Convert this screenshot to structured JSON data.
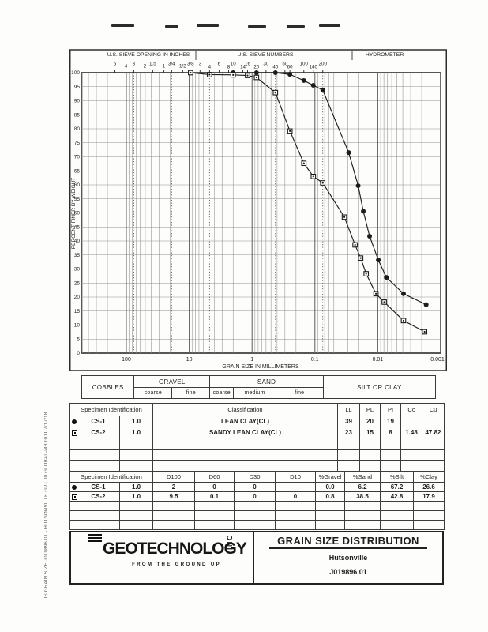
{
  "page": {
    "sidebar_note": "US GRAIN SIZE  J019896.01 - HUTSONVILLE.GPJ  00 GLOBAL-MB.GDT  7/17/18"
  },
  "colors": {
    "ink": "#1c1c1c",
    "grid_minor": "#909090",
    "grid_major": "#5c5c5c",
    "frame": "#2e2e2e"
  },
  "chart": {
    "header": {
      "inches_label": "U.S. SIEVE OPENING IN INCHES",
      "numbers_label": "U.S. SIEVE NUMBERS",
      "hydrometer_label": "HYDROMETER"
    },
    "ylabel": "PERCENT FINER BY WEIGHT",
    "xlabel": "GRAIN SIZE IN MILLIMETERS"
  },
  "chart_data": {
    "type": "line",
    "x_scale": "log-reversed",
    "x_range_mm": [
      520,
      0.001
    ],
    "ylim": [
      0,
      100
    ],
    "y_tick_step": 5,
    "grid": true,
    "x_decade_ticks": [
      {
        "label": "100",
        "mm": 100
      },
      {
        "label": "10",
        "mm": 10
      },
      {
        "label": "1",
        "mm": 1
      },
      {
        "label": "0.1",
        "mm": 0.1
      },
      {
        "label": "0.01",
        "mm": 0.01
      },
      {
        "label": "0.001",
        "mm": 0.001
      }
    ],
    "sieve_ticks_inches": [
      {
        "label": "6",
        "mm": 152.4
      },
      {
        "label": "4",
        "mm": 101.6
      },
      {
        "label": "3",
        "mm": 76.2
      },
      {
        "label": "2",
        "mm": 50.8
      },
      {
        "label": "1.5",
        "mm": 38.1
      },
      {
        "label": "1",
        "mm": 25.4
      },
      {
        "label": "3/4",
        "mm": 19.05
      },
      {
        "label": "1/2",
        "mm": 12.7
      },
      {
        "label": "3/8",
        "mm": 9.525
      }
    ],
    "sieve_ticks_numbers": [
      {
        "label": "3",
        "mm": 6.73
      },
      {
        "label": "4",
        "mm": 4.75
      },
      {
        "label": "6",
        "mm": 3.35
      },
      {
        "label": "8",
        "mm": 2.36
      },
      {
        "label": "10",
        "mm": 2.0
      },
      {
        "label": "14",
        "mm": 1.4
      },
      {
        "label": "16",
        "mm": 1.18
      },
      {
        "label": "20",
        "mm": 0.85
      },
      {
        "label": "30",
        "mm": 0.6
      },
      {
        "label": "40",
        "mm": 0.425
      },
      {
        "label": "50",
        "mm": 0.3
      },
      {
        "label": "60",
        "mm": 0.25
      },
      {
        "label": "100",
        "mm": 0.15
      },
      {
        "label": "140",
        "mm": 0.106
      },
      {
        "label": "200",
        "mm": 0.075
      }
    ],
    "boundary_lines_mm": [
      76.2,
      19.05,
      4.75,
      0.425,
      0.075
    ],
    "series": [
      {
        "name": "CS-1",
        "marker": "circle",
        "points": [
          [
            2.0,
            100
          ],
          [
            0.85,
            100
          ],
          [
            0.425,
            100
          ],
          [
            0.25,
            99.4
          ],
          [
            0.15,
            97.2
          ],
          [
            0.106,
            95.5
          ],
          [
            0.075,
            93.8
          ],
          [
            0.029,
            71.5
          ],
          [
            0.0205,
            59.7
          ],
          [
            0.017,
            50.6
          ],
          [
            0.0135,
            41.7
          ],
          [
            0.0098,
            33.2
          ],
          [
            0.0073,
            27.0
          ],
          [
            0.0039,
            21.2
          ],
          [
            0.0017,
            17.3
          ]
        ]
      },
      {
        "name": "CS-2",
        "marker": "square",
        "points": [
          [
            9.5,
            100
          ],
          [
            4.75,
            99.3
          ],
          [
            2.0,
            99.2
          ],
          [
            1.18,
            99.0
          ],
          [
            0.85,
            98.3
          ],
          [
            0.425,
            92.9
          ],
          [
            0.25,
            79.2
          ],
          [
            0.15,
            67.7
          ],
          [
            0.106,
            63.0
          ],
          [
            0.075,
            60.7
          ],
          [
            0.034,
            48.5
          ],
          [
            0.023,
            38.6
          ],
          [
            0.0187,
            33.9
          ],
          [
            0.0153,
            28.3
          ],
          [
            0.0107,
            21.2
          ],
          [
            0.0079,
            18.2
          ],
          [
            0.0039,
            11.6
          ],
          [
            0.0018,
            7.6
          ]
        ]
      }
    ]
  },
  "classification_bar": {
    "groups": [
      {
        "label": "COBBLES",
        "from_mm": 520,
        "to_mm": 76.2,
        "subs": []
      },
      {
        "label": "GRAVEL",
        "from_mm": 76.2,
        "to_mm": 4.75,
        "subs": [
          {
            "label": "coarse",
            "to_mm": 19.05
          },
          {
            "label": "fine",
            "to_mm": 4.75
          }
        ]
      },
      {
        "label": "SAND",
        "from_mm": 4.75,
        "to_mm": 0.075,
        "subs": [
          {
            "label": "coarse",
            "to_mm": 2.0
          },
          {
            "label": "medium",
            "to_mm": 0.425
          },
          {
            "label": "fine",
            "to_mm": 0.075
          }
        ]
      },
      {
        "label": "SILT OR CLAY",
        "from_mm": 0.075,
        "to_mm": 0.0012,
        "subs": []
      }
    ]
  },
  "table1": {
    "spec_header": "Specimen Identification",
    "class_header": "Classification",
    "value_headers": [
      "LL",
      "PL",
      "PI",
      "Cc",
      "Cu"
    ],
    "rows": [
      {
        "marker": "circle",
        "id": "CS-1",
        "depth": "1.0",
        "classification": "LEAN CLAY(CL)",
        "values": [
          "39",
          "20",
          "19",
          "",
          ""
        ]
      },
      {
        "marker": "square",
        "id": "CS-2",
        "depth": "1.0",
        "classification": "SANDY LEAN CLAY(CL)",
        "values": [
          "23",
          "15",
          "8",
          "1.48",
          "47.82"
        ]
      }
    ],
    "empty_rows": 3
  },
  "table2": {
    "spec_header": "Specimen Identification",
    "value_headers": [
      "D100",
      "D60",
      "D30",
      "D10",
      "%Gravel",
      "%Sand",
      "%Silt",
      "%Clay"
    ],
    "rows": [
      {
        "marker": "circle",
        "id": "CS-1",
        "depth": "1.0",
        "values": [
          "2",
          "0",
          "0",
          "",
          "0.0",
          "6.2",
          "67.2",
          "26.6"
        ]
      },
      {
        "marker": "square",
        "id": "CS-2",
        "depth": "1.0",
        "values": [
          "9.5",
          "0.1",
          "0",
          "0",
          "0.8",
          "38.5",
          "42.8",
          "17.9"
        ]
      }
    ],
    "empty_rows": 3
  },
  "title_block": {
    "company": "GEOTECHNOLOGY",
    "company_suffix": "INC",
    "tagline": "FROM THE GROUND UP",
    "report_title": "GRAIN SIZE DISTRIBUTION",
    "project": "Hutsonville",
    "job_number": "J019896.01"
  }
}
